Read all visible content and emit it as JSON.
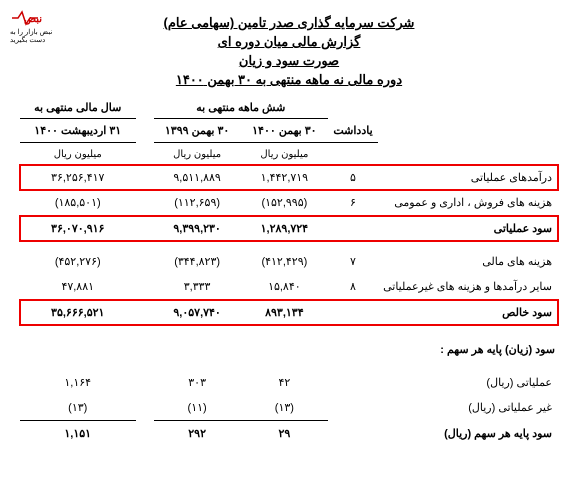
{
  "logo_text": "نبض بازار را به دست بگیرید",
  "header": {
    "line1": "شرکت سرمایه گذاری صدر تامین (سهامی عام)",
    "line2": "گزارش مالی میان دوره ای",
    "line3": "صورت سود و زیان",
    "line4": "دوره مالی نه ماهه منتهی به ۳۰ بهمن ۱۴۰۰"
  },
  "columns": {
    "note": "یادداشت",
    "group_6m": "شش ماهه منتهی به",
    "group_year": "سال مالی منتهی به",
    "c1": "۳۰ بهمن ۱۴۰۰",
    "c2": "۳۰ بهمن ۱۳۹۹",
    "c3": "۳۱ اردیبهشت ۱۴۰۰",
    "unit": "میلیون ریال"
  },
  "rows": [
    {
      "label": "درآمدهای عملیاتی",
      "note": "۵",
      "c1": "۱,۴۴۲,۷۱۹",
      "c2": "۹,۵۱۱,۸۸۹",
      "c3": "۳۶,۲۵۶,۴۱۷",
      "highlight": true,
      "bold": false
    },
    {
      "label": "هزینه های فروش ، اداری و عمومی",
      "note": "۶",
      "c1": "(۱۵۲,۹۹۵)",
      "c2": "(۱۱۲,۶۵۹)",
      "c3": "(۱۸۵,۵۰۱)",
      "highlight": false,
      "bold": false
    },
    {
      "label": "سود عملیاتی",
      "note": "",
      "c1": "۱,۲۸۹,۷۲۴",
      "c2": "۹,۳۹۹,۲۳۰",
      "c3": "۳۶,۰۷۰,۹۱۶",
      "highlight": true,
      "bold": true,
      "totalled": true
    },
    {
      "label": "هزینه های مالی",
      "note": "۷",
      "c1": "(۴۱۲,۴۲۹)",
      "c2": "(۳۴۴,۸۲۳)",
      "c3": "(۴۵۲,۲۷۶)",
      "highlight": false,
      "bold": false
    },
    {
      "label": "سایر درآمدها و هزینه های غیرعملیاتی",
      "note": "۸",
      "c1": "۱۵,۸۴۰",
      "c2": "۳,۳۳۳",
      "c3": "۴۷,۸۸۱",
      "highlight": false,
      "bold": false
    },
    {
      "label": "سود خالص",
      "note": "",
      "c1": "۸۹۳,۱۳۴",
      "c2": "۹,۰۵۷,۷۴۰",
      "c3": "۳۵,۶۶۶,۵۲۱",
      "highlight": true,
      "bold": true,
      "totalled": true
    }
  ],
  "eps_section": {
    "title": "سود (زیان) پایه هر سهم :",
    "rows": [
      {
        "label": "عملیاتی (ریال)",
        "c1": "۴۲",
        "c2": "۳۰۳",
        "c3": "۱,۱۶۴"
      },
      {
        "label": "غیر عملیاتی (ریال)",
        "c1": "(۱۳)",
        "c2": "(۱۱)",
        "c3": "(۱۳)"
      },
      {
        "label": "سود پایه هر سهم (ریال)",
        "c1": "۲۹",
        "c2": "۲۹۲",
        "c3": "۱,۱۵۱",
        "bold": true,
        "totalled": true
      }
    ]
  },
  "colors": {
    "highlight_border": "#e00000",
    "text": "#000000",
    "logo": "#cc0000"
  }
}
